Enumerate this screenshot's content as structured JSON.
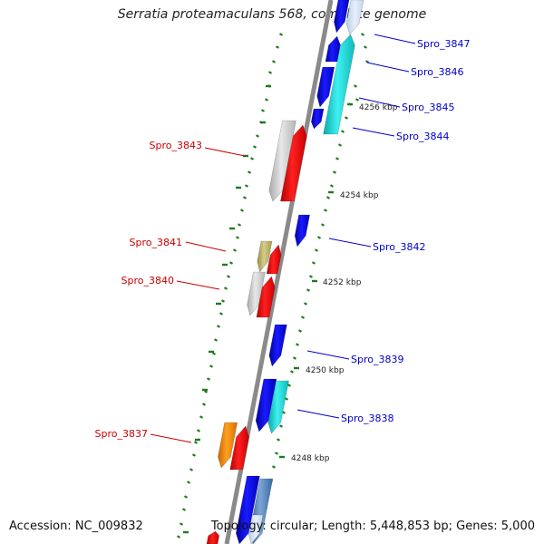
{
  "title": "Serratia proteamaculans 568, complete genome",
  "accession": "Accession: NC_009832",
  "summary": "Topology: circular; Length: 5,448,853 bp; Genes: 5,000",
  "colors": {
    "backbone": "#8a8a8a",
    "tick": "#1f7a1f",
    "label_forward": "#0000cc",
    "label_reverse": "#cc0000"
  },
  "scale_labels": [
    "4256 kbp",
    "4254 kbp",
    "4252 kbp",
    "4250 kbp",
    "4248 kbp"
  ],
  "gene_labels": [
    {
      "text": "Spro_3847",
      "strand": "forward"
    },
    {
      "text": "Spro_3846",
      "strand": "forward"
    },
    {
      "text": "Spro_3845",
      "strand": "forward"
    },
    {
      "text": "Spro_3844",
      "strand": "forward"
    },
    {
      "text": "Spro_3843",
      "strand": "reverse"
    },
    {
      "text": "Spro_3842",
      "strand": "forward"
    },
    {
      "text": "Spro_3841",
      "strand": "reverse"
    },
    {
      "text": "Spro_3840",
      "strand": "reverse"
    },
    {
      "text": "Spro_3839",
      "strand": "forward"
    },
    {
      "text": "Spro_3838",
      "strand": "forward"
    },
    {
      "text": "Spro_3837",
      "strand": "reverse"
    }
  ]
}
